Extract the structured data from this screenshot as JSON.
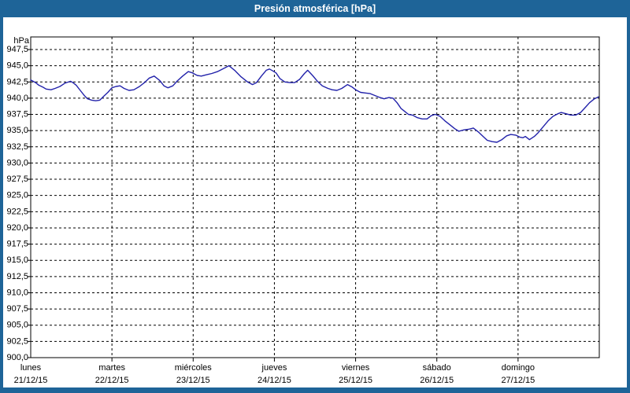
{
  "window": {
    "title": "Presión atmosférica [hPa]"
  },
  "colors": {
    "titlebar": "#1e6498",
    "frame": "#1e6498",
    "plot_background": "#ffffff",
    "grid": "#000000",
    "series_line": "#2222aa",
    "title_text": "#ffffff",
    "axis_text": "#000000"
  },
  "chart_data": {
    "type": "line",
    "title": "Presión atmosférica [hPa]",
    "ylabel": "hPa",
    "xlabel": "",
    "legend": "none",
    "grid": "dashed",
    "y_axis": {
      "unit_label": "hPa",
      "ylim": [
        900.0,
        949.5
      ],
      "tick_step": 2.5,
      "decimal_separator": ",",
      "tick_values": [
        947.5,
        945.0,
        942.5,
        940.0,
        937.5,
        935.0,
        932.5,
        930.0,
        927.5,
        925.0,
        922.5,
        920.0,
        917.5,
        915.0,
        912.5,
        910.0,
        907.5,
        905.0,
        902.5,
        900.0
      ],
      "tick_labels": [
        "947,5",
        "945,0",
        "942,5",
        "940,0",
        "937,5",
        "935,0",
        "932,5",
        "930,0",
        "927,5",
        "925,0",
        "922,5",
        "920,0",
        "917,5",
        "915,0",
        "912,5",
        "910,0",
        "907,5",
        "905,0",
        "902,5",
        "900,0"
      ]
    },
    "x_axis": {
      "span_days": 7,
      "days": [
        {
          "name": "lunes",
          "date": "21/12/15"
        },
        {
          "name": "martes",
          "date": "22/12/15"
        },
        {
          "name": "miércoles",
          "date": "23/12/15"
        },
        {
          "name": "jueves",
          "date": "24/12/15"
        },
        {
          "name": "viernes",
          "date": "25/12/15"
        },
        {
          "name": "sábado",
          "date": "26/12/15"
        },
        {
          "name": "domingo",
          "date": "27/12/15"
        }
      ]
    },
    "series": [
      {
        "name": "Presión atmosférica [hPa]",
        "x_unit": "days_from_monday_00h",
        "points": [
          [
            0.0,
            942.8
          ],
          [
            0.06,
            942.4
          ],
          [
            0.1,
            942.0
          ],
          [
            0.15,
            941.7
          ],
          [
            0.19,
            941.4
          ],
          [
            0.25,
            941.3
          ],
          [
            0.3,
            941.5
          ],
          [
            0.36,
            941.8
          ],
          [
            0.42,
            942.3
          ],
          [
            0.49,
            942.6
          ],
          [
            0.52,
            942.4
          ],
          [
            0.56,
            942.0
          ],
          [
            0.61,
            941.2
          ],
          [
            0.66,
            940.4
          ],
          [
            0.7,
            939.9
          ],
          [
            0.75,
            939.7
          ],
          [
            0.8,
            939.6
          ],
          [
            0.85,
            939.7
          ],
          [
            0.9,
            940.3
          ],
          [
            0.95,
            940.9
          ],
          [
            1.0,
            941.6
          ],
          [
            1.05,
            941.8
          ],
          [
            1.1,
            941.9
          ],
          [
            1.15,
            941.5
          ],
          [
            1.21,
            941.2
          ],
          [
            1.27,
            941.3
          ],
          [
            1.34,
            941.8
          ],
          [
            1.41,
            942.5
          ],
          [
            1.46,
            943.1
          ],
          [
            1.52,
            943.4
          ],
          [
            1.59,
            942.7
          ],
          [
            1.64,
            941.9
          ],
          [
            1.69,
            941.6
          ],
          [
            1.75,
            941.9
          ],
          [
            1.8,
            942.6
          ],
          [
            1.87,
            943.4
          ],
          [
            1.94,
            944.1
          ],
          [
            1.99,
            943.9
          ],
          [
            2.05,
            943.5
          ],
          [
            2.1,
            943.4
          ],
          [
            2.16,
            943.6
          ],
          [
            2.23,
            943.8
          ],
          [
            2.3,
            944.1
          ],
          [
            2.38,
            944.6
          ],
          [
            2.44,
            945.0
          ],
          [
            2.51,
            944.3
          ],
          [
            2.59,
            943.3
          ],
          [
            2.67,
            942.5
          ],
          [
            2.73,
            942.1
          ],
          [
            2.78,
            942.4
          ],
          [
            2.84,
            943.4
          ],
          [
            2.9,
            944.3
          ],
          [
            2.94,
            944.5
          ],
          [
            2.98,
            944.2
          ],
          [
            3.02,
            943.9
          ],
          [
            3.07,
            943.0
          ],
          [
            3.13,
            942.5
          ],
          [
            3.19,
            942.4
          ],
          [
            3.25,
            942.4
          ],
          [
            3.31,
            942.9
          ],
          [
            3.37,
            943.8
          ],
          [
            3.41,
            944.3
          ],
          [
            3.47,
            943.5
          ],
          [
            3.53,
            942.6
          ],
          [
            3.59,
            941.9
          ],
          [
            3.66,
            941.5
          ],
          [
            3.71,
            941.3
          ],
          [
            3.77,
            941.2
          ],
          [
            3.83,
            941.5
          ],
          [
            3.9,
            942.1
          ],
          [
            3.96,
            941.7
          ],
          [
            4.0,
            941.3
          ],
          [
            4.06,
            940.9
          ],
          [
            4.12,
            940.8
          ],
          [
            4.18,
            940.7
          ],
          [
            4.24,
            940.4
          ],
          [
            4.3,
            940.1
          ],
          [
            4.35,
            939.9
          ],
          [
            4.41,
            940.1
          ],
          [
            4.46,
            940.0
          ],
          [
            4.51,
            939.3
          ],
          [
            4.56,
            938.4
          ],
          [
            4.61,
            937.9
          ],
          [
            4.65,
            937.5
          ],
          [
            4.7,
            937.4
          ],
          [
            4.76,
            937.0
          ],
          [
            4.82,
            936.8
          ],
          [
            4.88,
            936.8
          ],
          [
            4.93,
            937.3
          ],
          [
            4.98,
            937.5
          ],
          [
            5.04,
            937.2
          ],
          [
            5.1,
            936.5
          ],
          [
            5.16,
            935.9
          ],
          [
            5.22,
            935.3
          ],
          [
            5.27,
            934.9
          ],
          [
            5.33,
            935.1
          ],
          [
            5.39,
            935.2
          ],
          [
            5.45,
            935.4
          ],
          [
            5.51,
            934.8
          ],
          [
            5.57,
            934.1
          ],
          [
            5.62,
            933.5
          ],
          [
            5.68,
            933.3
          ],
          [
            5.74,
            933.2
          ],
          [
            5.8,
            933.6
          ],
          [
            5.86,
            934.2
          ],
          [
            5.91,
            934.4
          ],
          [
            5.97,
            934.3
          ],
          [
            6.02,
            934.0
          ],
          [
            6.06,
            933.9
          ],
          [
            6.09,
            934.1
          ],
          [
            6.14,
            933.6
          ],
          [
            6.2,
            934.1
          ],
          [
            6.25,
            934.7
          ],
          [
            6.31,
            935.6
          ],
          [
            6.37,
            936.5
          ],
          [
            6.43,
            937.2
          ],
          [
            6.49,
            937.6
          ],
          [
            6.53,
            937.8
          ],
          [
            6.59,
            937.6
          ],
          [
            6.65,
            937.4
          ],
          [
            6.71,
            937.4
          ],
          [
            6.77,
            937.8
          ],
          [
            6.83,
            938.6
          ],
          [
            6.88,
            939.3
          ],
          [
            6.94,
            939.9
          ],
          [
            6.99,
            940.2
          ]
        ]
      }
    ]
  }
}
